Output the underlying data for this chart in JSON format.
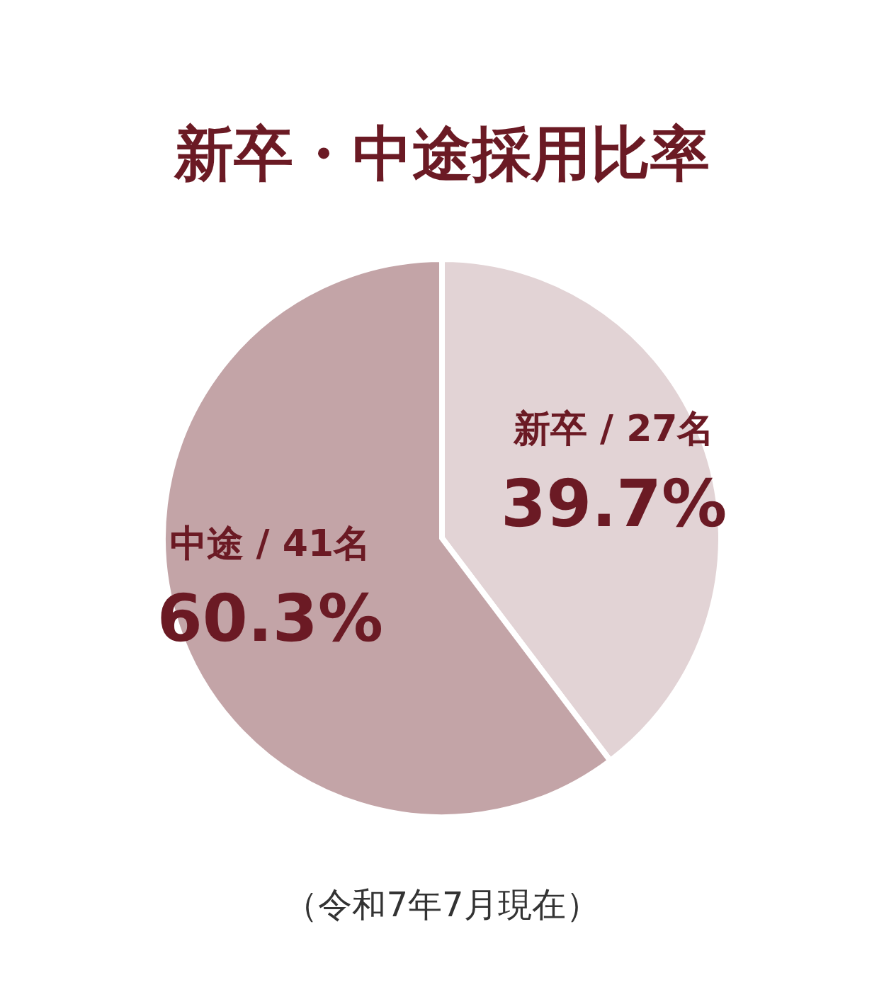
{
  "chart_data": {
    "type": "pie",
    "title": "新卒・中途採用比率",
    "categories": [
      "新卒 / 27名",
      "中途 / 41名"
    ],
    "values": [
      39.7,
      60.3
    ],
    "value_labels": [
      "39.7%",
      "60.3%"
    ],
    "colors": [
      "#e2d3d5",
      "#c3a4a7"
    ],
    "annotations": [
      "（令和7年7月現在）"
    ]
  }
}
